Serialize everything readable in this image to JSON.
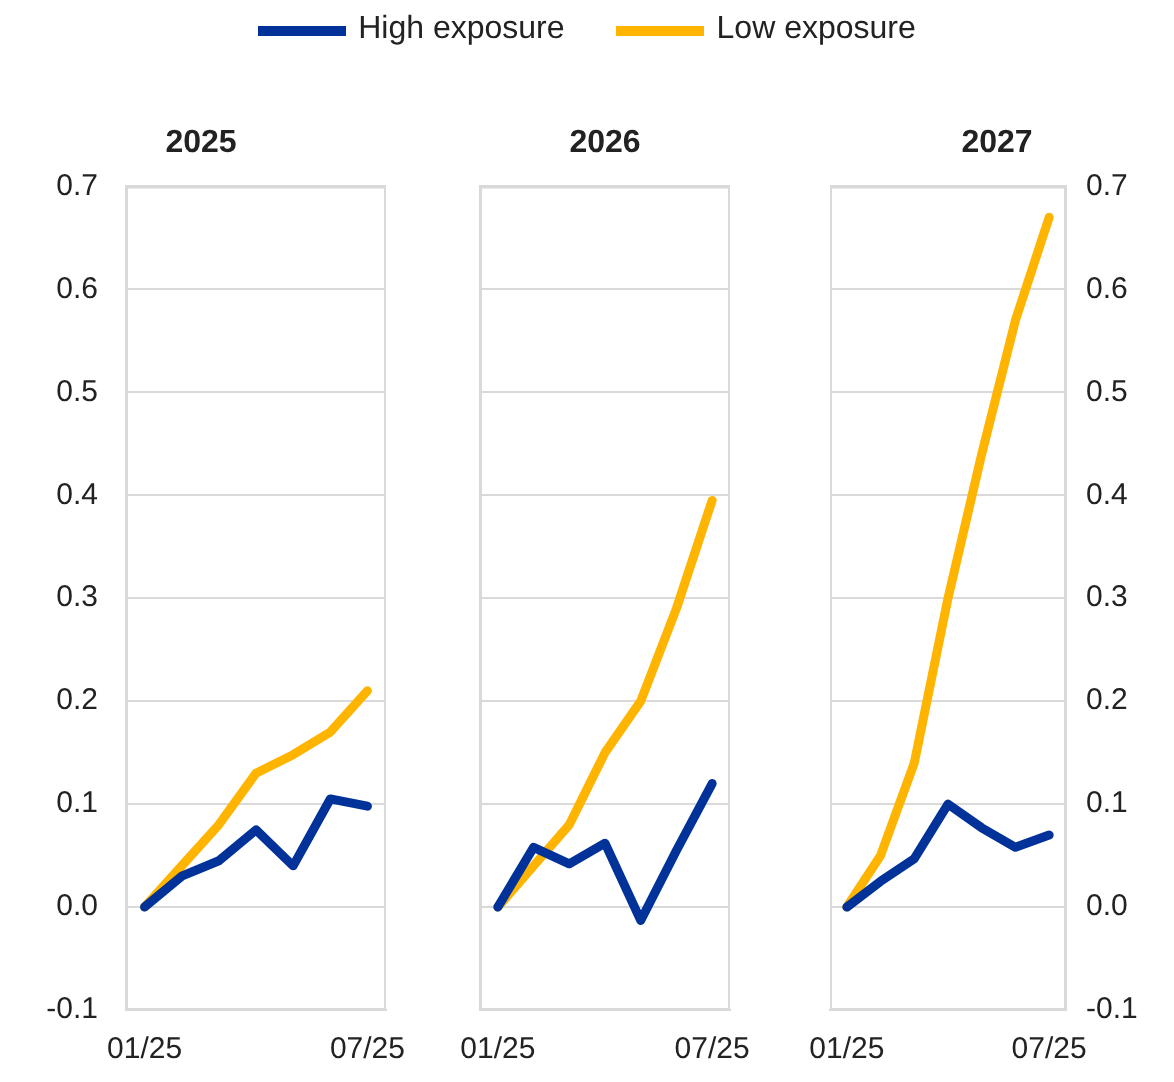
{
  "chart_data": [
    {
      "type": "line",
      "title": "2025",
      "legend": "top",
      "grid": "y",
      "line_style": "solid",
      "marker": "none",
      "categories": [
        "01/25",
        null,
        null,
        null,
        null,
        null,
        "07/25"
      ],
      "ylim": [
        -0.1,
        0.7
      ],
      "yticks": [
        -0.1,
        {
          "value": 0,
          "label": "0.0"
        },
        0.1,
        0.2,
        0.3,
        0.4,
        0.5,
        0.6,
        0.7
      ],
      "series": [
        {
          "name": "High exposure",
          "color": "#003299",
          "values": [
            0,
            0.03,
            0.045,
            0.075,
            0.04,
            0.105,
            0.098
          ]
        },
        {
          "name": "Low exposure",
          "color": "#ffb400",
          "values": [
            0,
            0.04,
            0.08,
            0.13,
            0.148,
            0.17,
            0.21
          ]
        }
      ]
    },
    {
      "type": "line",
      "title": "2026",
      "legend": false,
      "grid": "y",
      "tick_labels": "x",
      "line_style": "solid",
      "marker": "none",
      "categories": [
        "01/25",
        null,
        null,
        null,
        null,
        null,
        "07/25"
      ],
      "ylim": [
        -0.1,
        0.7
      ],
      "yticks": [
        -0.1,
        0,
        0.1,
        0.2,
        0.3,
        0.4,
        0.5,
        0.6,
        0.7
      ],
      "series": [
        {
          "color": "#003299",
          "values": [
            0,
            0.058,
            0.042,
            0.062,
            -0.013,
            0.055,
            0.12
          ]
        },
        {
          "color": "#ffb400",
          "values": [
            0,
            0.04,
            0.08,
            0.15,
            0.2,
            0.29,
            0.395
          ]
        }
      ]
    },
    {
      "type": "line",
      "title": "2027",
      "legend": false,
      "grid": "y",
      "line_style": "solid",
      "marker": "none",
      "categories": [
        "01/25",
        null,
        null,
        null,
        null,
        null,
        "07/25"
      ],
      "y2lim": [
        -0.1,
        0.7
      ],
      "y2ticks": [
        -0.1,
        {
          "value": 0,
          "label": "0.0"
        },
        0.1,
        0.2,
        0.3,
        0.4,
        0.5,
        0.6,
        0.7
      ],
      "series": [
        {
          "color": "#003299",
          "axis": "y2",
          "values": [
            0,
            0.025,
            0.047,
            0.1,
            0.077,
            0.058,
            0.07
          ]
        },
        {
          "color": "#ffb400",
          "axis": "y2",
          "values": [
            0,
            0.05,
            0.14,
            0.3,
            0.44,
            0.57,
            0.67
          ]
        }
      ]
    }
  ]
}
